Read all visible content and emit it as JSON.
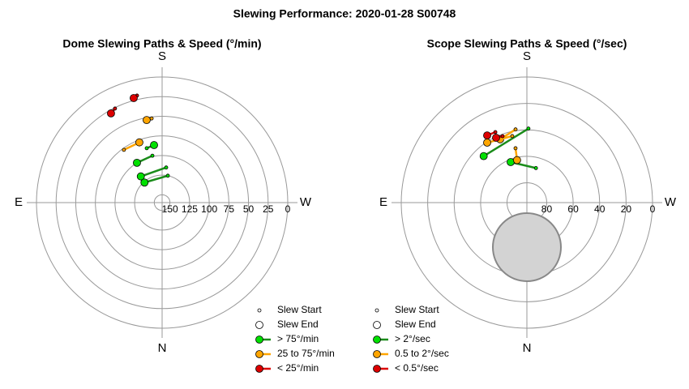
{
  "title": "Slewing Performance: 2020-01-28 S00748",
  "chart_data": [
    {
      "type": "polar",
      "title": "Dome Slewing Paths & Speed (°/min)",
      "directions": [
        "S",
        "W",
        "N",
        "E"
      ],
      "rlim": [
        160,
        0
      ],
      "rticks": [
        150,
        125,
        100,
        75,
        50,
        25,
        0
      ],
      "markers": [
        "Slew Start",
        "Slew End"
      ],
      "series": [
        {
          "name": "> 75°/min",
          "color": "#00e000",
          "line_color": "#1a8c1a",
          "slews": [
            {
              "az": [
                164.2,
                172
              ],
              "r": [
                88,
                86
              ]
            },
            {
              "az": [
                168.3,
                147.7
              ],
              "r": [
                99,
                100
              ]
            },
            {
              "az": [
                186.6,
                140.9
              ],
              "r": [
                115,
                117
              ]
            },
            {
              "az": [
                192,
                138.7
              ],
              "r": [
                125,
                126
              ]
            }
          ]
        },
        {
          "name": "25 to 75°/min",
          "color": "#ffa500",
          "line_color": "#ffa500",
          "slews": [
            {
              "az": [
                172.9,
                169.4
              ],
              "r": [
                52,
                53
              ]
            },
            {
              "az": [
                144.1,
                159.3
              ],
              "r": [
                77,
                78
              ]
            }
          ]
        },
        {
          "name": "< 25°/min",
          "color": "#dd0000",
          "line_color": "#dd0000",
          "slews": [
            {
              "az": [
                166.8,
                164.8
              ],
              "r": [
                20,
                22
              ]
            },
            {
              "az": [
                153.4,
                150.2
              ],
              "r": [
                26,
                29
              ]
            }
          ]
        }
      ]
    },
    {
      "type": "polar",
      "title": "Scope Slewing Paths & Speed (°/sec)",
      "directions": [
        "S",
        "W",
        "N",
        "E"
      ],
      "rlim": [
        95,
        0
      ],
      "rticks": [
        80,
        60,
        40,
        20,
        0
      ],
      "markers": [
        "Slew Start",
        "Slew End"
      ],
      "series": [
        {
          "name": "> 2°/sec",
          "color": "#00e000",
          "line_color": "#1a8c1a",
          "slews": [
            {
              "az": [
                181.2,
                137.1
              ],
              "r": [
                39,
                47
              ]
            },
            {
              "az": [
                194.7,
                158.2
              ],
              "r": [
                68,
                62
              ]
            }
          ]
        },
        {
          "name": "0.5 to 2°/sec",
          "color": "#ffa500",
          "line_color": "#ffa500",
          "slews": [
            {
              "az": [
                171.2,
                157.1
              ],
              "r": [
                39,
                43
              ]
            },
            {
              "az": [
                167.6,
                146.5
              ],
              "r": [
                43.5,
                40.6
              ]
            },
            {
              "az": [
                168.2,
                167
              ],
              "r": [
                53,
                62
              ]
            }
          ]
        },
        {
          "name": "< 0.5°/sec",
          "color": "#dd0000",
          "line_color": "#dd0000",
          "slews": [
            {
              "az": [
                155.9,
                149.4
              ],
              "r": [
                36.6,
                36
              ]
            },
            {
              "az": [
                159.9,
                154.6
              ],
              "r": [
                41.5,
                40.7
              ]
            }
          ]
        }
      ]
    }
  ]
}
